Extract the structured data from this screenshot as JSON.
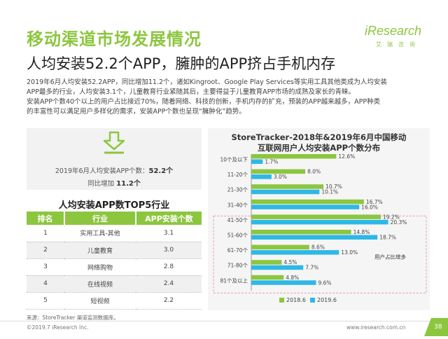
{
  "header": {
    "section_title": "移动渠道市场发展情况",
    "brand_name": "iResearch",
    "brand_sub": "艾瑞咨询",
    "headline": "人均安装52.2个APP，臃肿的APP挤占手机内存"
  },
  "body": {
    "line1": "2019年6月人均安装52.2APP，同比增加11.2个，诸如Kingroot、Google Play Services等实用工具其他类成为人均安装",
    "line2": "APP最多的行业，人均安装3.1个，儿童教育行业紧随其后，主要得益于儿童教育APP市场的成熟及家长的青睐。",
    "line3": "安装APP个数40个以上的用户占比接近70%，随着网络、科技的创新，手机内存的扩充，预装的APP越来越多，APP种类",
    "line4": "的丰富性可以满足用户多样化的需求，安装APP个数也呈现“臃肿化”趋势。"
  },
  "stat": {
    "line1_prefix": "2019年6月人均安装APP个数：",
    "line1_value": "52.2个",
    "line2_prefix": "同比增加 ",
    "line2_value": "11.2个"
  },
  "top5": {
    "title": "人均安装APP数TOP5行业",
    "headers": [
      "排名",
      "行业",
      "APP安装个数"
    ],
    "rows": [
      [
        "1",
        "实用工具-其他",
        "3.1"
      ],
      [
        "2",
        "儿童教育",
        "3.0"
      ],
      [
        "3",
        "网络购物",
        "2.8"
      ],
      [
        "4",
        "在线视频",
        "2.4"
      ],
      [
        "5",
        "短视频",
        "2.2"
      ]
    ]
  },
  "source_note": "来源：StoreTracker 渠道监测数据库。",
  "chart_data": {
    "type": "bar",
    "orientation": "horizontal",
    "title_line1": "StoreTracker-2018年&2019年6月中国移动",
    "title_line2": "互联网用户人均安装APP个数分布",
    "categories": [
      "10个及以下",
      "11-20个",
      "21-30个",
      "31-40个",
      "41-50个",
      "51-60个",
      "61-70个",
      "71-80个",
      "81个及以上"
    ],
    "series": [
      {
        "name": "2018.6",
        "color": "#8cc63f",
        "values": [
          12.6,
          8.0,
          10.7,
          16.7,
          19.2,
          14.8,
          8.6,
          4.5,
          4.8
        ]
      },
      {
        "name": "2019.6",
        "color": "#2eb8e6",
        "values": [
          1.7,
          3.0,
          10.1,
          16.0,
          20.3,
          18.7,
          13.0,
          7.7,
          9.6
        ]
      }
    ],
    "value_suffix": "%",
    "xlim": [
      0,
      22
    ],
    "annotation": "用户占比增多",
    "legend_position": "bottom"
  },
  "footer": {
    "copyright": "©2019.7 iResearch Inc.",
    "url": "www.iresearch.com.cn",
    "page": "38"
  },
  "colors": {
    "accent": "#8cc63f",
    "series2": "#2eb8e6"
  }
}
